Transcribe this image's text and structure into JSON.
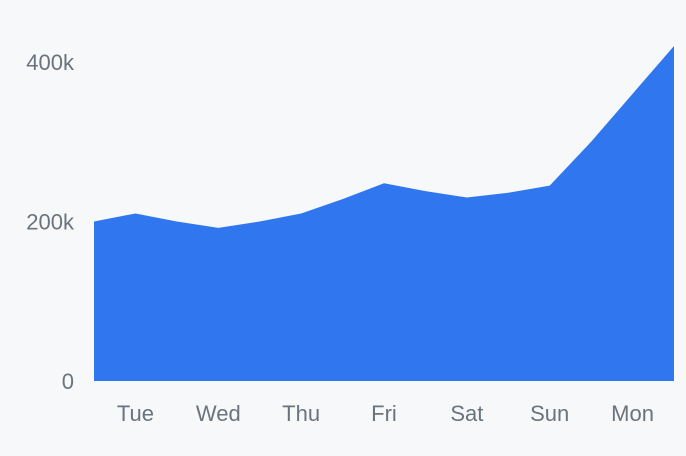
{
  "chart_data": {
    "type": "area",
    "x": [
      "",
      "Tue",
      "",
      "Wed",
      "",
      "Thu",
      "",
      "Fri",
      "",
      "Sat",
      "",
      "Sun",
      "",
      "Mon",
      ""
    ],
    "x_tick_labels": [
      "Tue",
      "Wed",
      "Thu",
      "Fri",
      "Sat",
      "Sun",
      "Mon"
    ],
    "series": [
      {
        "values": [
          200000,
          210000,
          200000,
          192000,
          200000,
          210000,
          228000,
          248000,
          238000,
          230000,
          236000,
          245000,
          300000,
          360000,
          420000
        ],
        "color": "#2f76ef"
      }
    ],
    "y_tick_labels": [
      "0",
      "200k",
      "400k"
    ],
    "y_ticks": [
      0,
      200000,
      400000
    ],
    "ylim": [
      0,
      420000
    ],
    "grid": false,
    "legend": "none",
    "background": "#f6f8fa",
    "label_color": "#6b747c"
  }
}
